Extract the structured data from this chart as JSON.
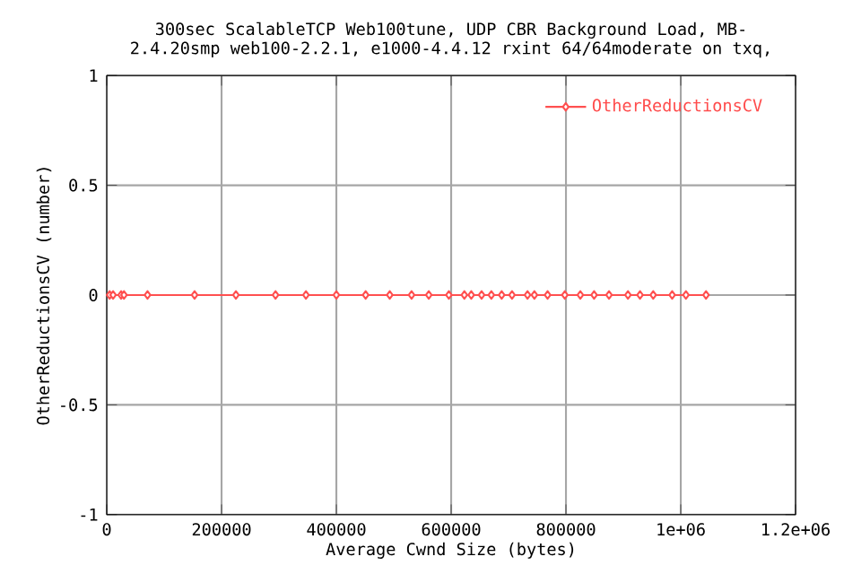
{
  "chart_data": {
    "type": "line",
    "title": "300sec ScalableTCP Web100tune, UDP CBR Background Load, MB-\n2.4.20smp web100-2.2.1, e1000-4.4.12 rxint 64/64moderate on txq,",
    "xlabel": "Average Cwnd Size (bytes)",
    "ylabel": "OtherReductionsCV (number)",
    "xlim": [
      0,
      1200000
    ],
    "ylim": [
      -1,
      1
    ],
    "xticks": [
      0,
      200000,
      400000,
      600000,
      800000,
      {
        "value": 1000000,
        "label": "1e+06"
      },
      {
        "value": 1200000,
        "label": "1.2e+06"
      }
    ],
    "yticks": [
      -1,
      -0.5,
      0,
      0.5,
      1
    ],
    "grid": true,
    "legend": "top right",
    "marker": "diamond",
    "line_style": "solid",
    "series": [
      {
        "name": "OtherReductionsCV",
        "color": "#ff5050",
        "x": [
          5000,
          11000,
          25000,
          30000,
          71000,
          153000,
          225000,
          294000,
          347000,
          400000,
          451000,
          493000,
          531000,
          561000,
          596000,
          623000,
          635000,
          653000,
          670000,
          688000,
          706000,
          733000,
          745000,
          768000,
          798000,
          825000,
          849000,
          875000,
          908000,
          929000,
          952000,
          985000,
          1009000,
          1044000
        ],
        "values": [
          0,
          0,
          0,
          0,
          0,
          0,
          0,
          0,
          0,
          0,
          0,
          0,
          0,
          0,
          0,
          0,
          0,
          0,
          0,
          0,
          0,
          0,
          0,
          0,
          0,
          0,
          0,
          0,
          0,
          0,
          0,
          0,
          0,
          0
        ]
      }
    ]
  }
}
